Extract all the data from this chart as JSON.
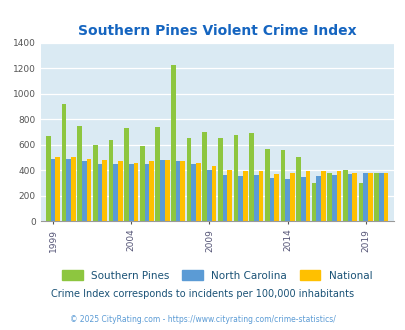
{
  "title": "Southern Pines Violent Crime Index",
  "years": [
    1999,
    2000,
    2001,
    2002,
    2003,
    2004,
    2005,
    2006,
    2007,
    2008,
    2009,
    2010,
    2011,
    2012,
    2013,
    2014,
    2015,
    2016,
    2017,
    2018,
    2019,
    2020
  ],
  "southern_pines": [
    670,
    920,
    750,
    600,
    640,
    730,
    590,
    740,
    1230,
    650,
    700,
    650,
    680,
    690,
    570,
    560,
    500,
    300,
    380,
    400,
    300,
    380
  ],
  "north_carolina": [
    490,
    490,
    470,
    450,
    445,
    450,
    450,
    480,
    470,
    450,
    405,
    365,
    355,
    360,
    340,
    330,
    345,
    355,
    365,
    370,
    380,
    375
  ],
  "national": [
    500,
    500,
    490,
    480,
    470,
    460,
    470,
    480,
    470,
    455,
    430,
    400,
    390,
    390,
    370,
    375,
    395,
    395,
    395,
    380,
    380,
    380
  ],
  "colors": {
    "southern_pines": "#8dc63f",
    "north_carolina": "#5b9bd5",
    "national": "#ffc000"
  },
  "background_color": "#daeaf3",
  "ylim": [
    0,
    1400
  ],
  "yticks": [
    0,
    200,
    400,
    600,
    800,
    1000,
    1200,
    1400
  ],
  "xtick_years": [
    1999,
    2004,
    2009,
    2014,
    2019
  ],
  "legend_labels": [
    "Southern Pines",
    "North Carolina",
    "National"
  ],
  "title_color": "#1565c0",
  "footnote1": "Crime Index corresponds to incidents per 100,000 inhabitants",
  "footnote1_color": "#1a5276",
  "footnote2": "© 2025 CityRating.com - https://www.cityrating.com/crime-statistics/",
  "footnote2_color": "#5b9bd5"
}
